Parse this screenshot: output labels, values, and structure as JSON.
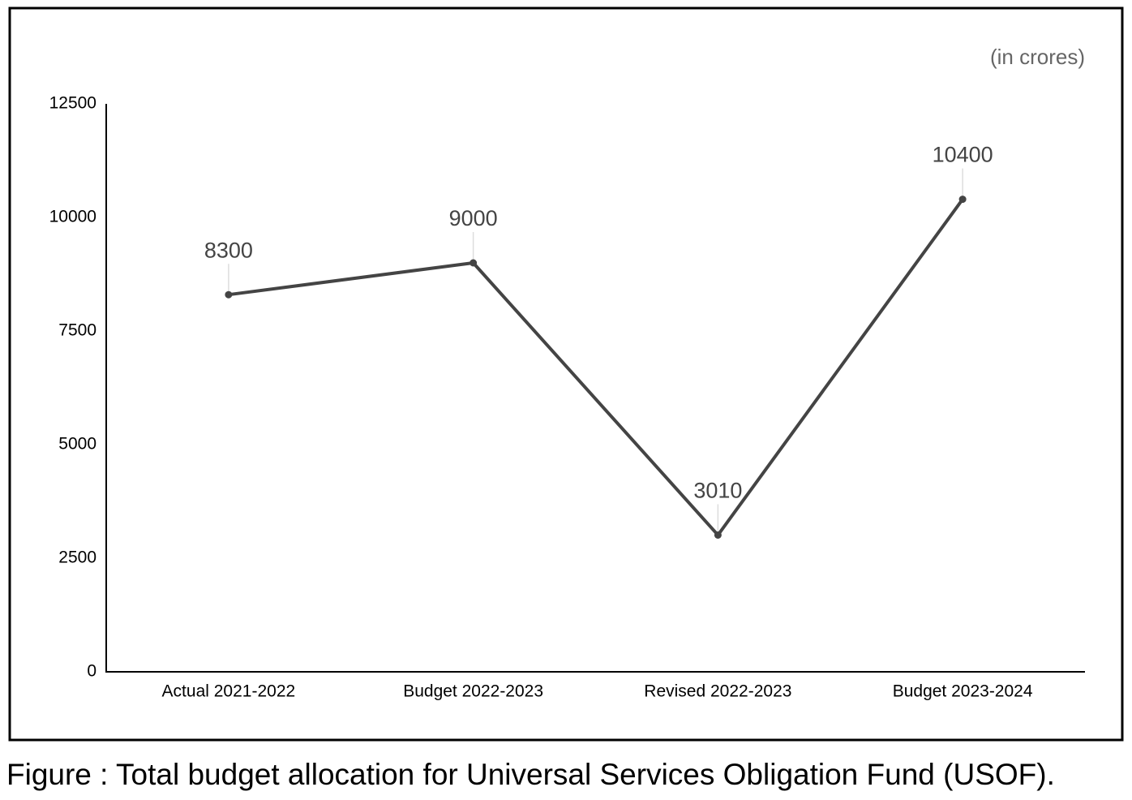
{
  "chart_data": {
    "type": "line",
    "annotation": "(in crores)",
    "caption": "Figure : Total budget allocation for Universal Services Obligation Fund (USOF).",
    "categories": [
      "Actual 2021-2022",
      "Budget 2022-2023",
      "Revised 2022-2023",
      "Budget 2023-2024"
    ],
    "values": [
      8300,
      9000,
      3010,
      10400
    ],
    "color": "#444444",
    "ylim": [
      0,
      12500
    ],
    "yticks": [
      0,
      2500,
      5000,
      7500,
      10000,
      12500
    ],
    "grid": false
  }
}
